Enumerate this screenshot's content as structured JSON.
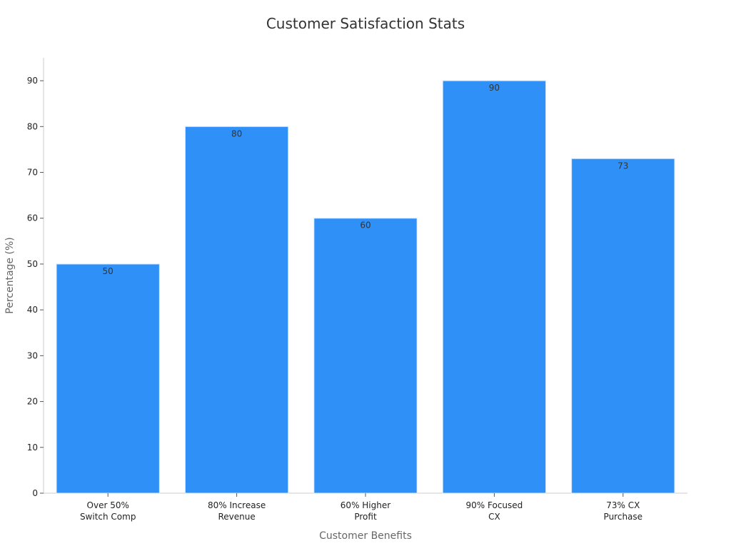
{
  "chart_data": {
    "type": "bar",
    "title": "Customer Satisfaction Stats",
    "xlabel": "Customer Benefits",
    "ylabel": "Percentage (%)",
    "categories": [
      [
        "Over 50%",
        "Switch Comp"
      ],
      [
        "80% Increase",
        "Revenue"
      ],
      [
        "60% Higher",
        "Profit"
      ],
      [
        "90% Focused",
        "CX"
      ],
      [
        "73% CX",
        "Purchase"
      ]
    ],
    "values": [
      50,
      80,
      60,
      90,
      73
    ],
    "data_labels": [
      "50",
      "80",
      "60",
      "90",
      "73"
    ],
    "yticks": [
      0,
      10,
      20,
      30,
      40,
      50,
      60,
      70,
      80,
      90
    ],
    "ylim": [
      0,
      95
    ],
    "grid": false,
    "legend": "none",
    "bar_color": "#2f91f7",
    "bar_edge_color": "#d6e8fb"
  }
}
